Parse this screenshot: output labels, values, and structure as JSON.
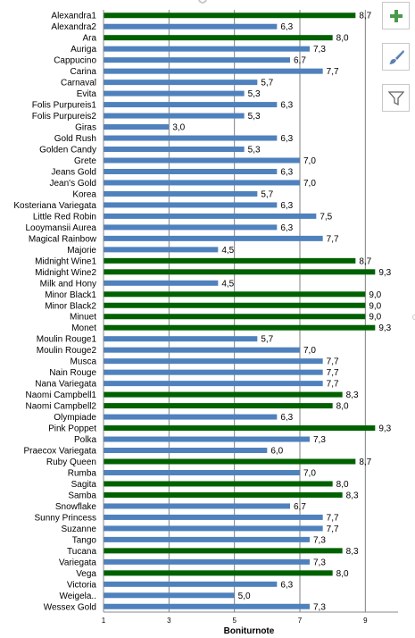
{
  "toolbar": {
    "add_icon": "plus-icon",
    "style_icon": "brush-icon",
    "filter_icon": "filter-icon"
  },
  "colors": {
    "blue": "#4f81bd",
    "green": "#006100",
    "grid": "#7f7f7f"
  },
  "chart_data": {
    "type": "bar",
    "orientation": "horizontal",
    "title": "",
    "xlabel": "Boniturnote",
    "ylabel": "",
    "xlim": [
      1,
      10
    ],
    "xticks": [
      "1",
      "3",
      "5",
      "7",
      "9"
    ],
    "grid": "vertical",
    "legend": "none",
    "categories": [
      "Alexandra1",
      "Alexandra2",
      "Ara",
      "Auriga",
      "Cappucino",
      "Carina",
      "Carnaval",
      "Evita",
      "Folis Purpureis1",
      "Folis Purpureis2",
      "Giras",
      "Gold Rush",
      "Golden Candy",
      "Grete",
      "Jeans Gold",
      "Jean's Gold",
      "Korea",
      "Kosteriana Variegata",
      "Little Red Robin",
      "Looymansii Aurea",
      "Magical Rainbow",
      "Majorie",
      "Midnight Wine1",
      "Midnight Wine2",
      "Milk and Hony",
      "Minor Black1",
      "Minor Black2",
      "Minuet",
      "Monet",
      "Moulin Rouge1",
      "Moulin Rouge2",
      "Musca",
      "Nain Rouge",
      "Nana Variegata",
      "Naomi Campbell1",
      "Naomi Campbell2",
      "Olympiade",
      "Pink Poppet",
      "Polka",
      "Praecox Variegata",
      "Ruby Queen",
      "Rumba",
      "Sagita",
      "Samba",
      "Snowflake",
      "Sunny Princess",
      "Suzanne",
      "Tango",
      "Tucana",
      "Variegata",
      "Vega",
      "Victoria",
      "Weigela..",
      "Wessex Gold"
    ],
    "values": [
      8.7,
      6.3,
      8.0,
      7.3,
      6.7,
      7.7,
      5.7,
      5.3,
      6.3,
      5.3,
      3.0,
      6.3,
      5.3,
      7.0,
      6.3,
      7.0,
      5.7,
      6.3,
      7.5,
      6.3,
      7.7,
      4.5,
      8.7,
      9.3,
      4.5,
      9.0,
      9.0,
      9.0,
      9.3,
      5.7,
      7.0,
      7.7,
      7.7,
      7.7,
      8.3,
      8.0,
      6.3,
      9.3,
      7.3,
      6.0,
      8.7,
      7.0,
      8.0,
      8.3,
      6.7,
      7.7,
      7.7,
      7.3,
      8.3,
      7.3,
      8.0,
      6.3,
      5.0,
      7.3
    ],
    "value_labels": [
      "8,7",
      "6,3",
      "8,0",
      "7,3",
      "6,7",
      "7,7",
      "5,7",
      "5,3",
      "6,3",
      "5,3",
      "3,0",
      "6,3",
      "5,3",
      "7,0",
      "6,3",
      "7,0",
      "5,7",
      "6,3",
      "7,5",
      "6,3",
      "7,7",
      "4,5",
      "8,7",
      "9,3",
      "4,5",
      "9,0",
      "9,0",
      "9,0",
      "9,3",
      "5,7",
      "7,0",
      "7,7",
      "7,7",
      "7,7",
      "8,3",
      "8,0",
      "6,3",
      "9,3",
      "7,3",
      "6,0",
      "8,7",
      "7,0",
      "8,0",
      "8,3",
      "6,7",
      "7,7",
      "7,7",
      "7,3",
      "8,3",
      "7,3",
      "8,0",
      "6,3",
      "5,0",
      "7,3"
    ],
    "bar_colors": [
      "green",
      "blue",
      "green",
      "blue",
      "blue",
      "blue",
      "blue",
      "blue",
      "blue",
      "blue",
      "blue",
      "blue",
      "blue",
      "blue",
      "blue",
      "blue",
      "blue",
      "blue",
      "blue",
      "blue",
      "blue",
      "blue",
      "green",
      "green",
      "blue",
      "green",
      "green",
      "green",
      "green",
      "blue",
      "blue",
      "blue",
      "blue",
      "blue",
      "green",
      "green",
      "blue",
      "green",
      "blue",
      "blue",
      "green",
      "blue",
      "green",
      "green",
      "blue",
      "blue",
      "blue",
      "blue",
      "green",
      "blue",
      "green",
      "blue",
      "blue",
      "blue"
    ]
  }
}
